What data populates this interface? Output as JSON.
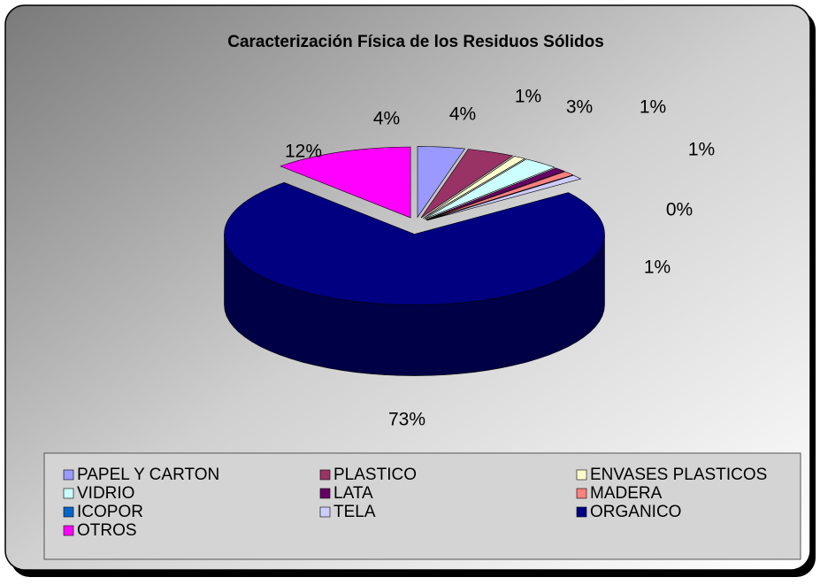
{
  "chart_data": {
    "type": "pie3d",
    "title": "Caracterización Física de los Residuos Sólidos",
    "categories": [
      "PAPEL Y CARTON",
      "PLASTICO",
      "ENVASES PLASTICOS",
      "VIDRIO",
      "LATA",
      "MADERA",
      "ICOPOR",
      "TELA",
      "ORGANICO",
      "OTROS"
    ],
    "values": [
      4,
      4,
      1,
      3,
      1,
      1,
      0,
      1,
      73,
      12
    ],
    "value_labels": [
      "4%",
      "4%",
      "1%",
      "3%",
      "1%",
      "1%",
      "0%",
      "1%",
      "73%",
      "12%"
    ],
    "colors": [
      "#9999ff",
      "#993366",
      "#ffffcc",
      "#ccffff",
      "#660066",
      "#ff8080",
      "#0066cc",
      "#ccccff",
      "#000080",
      "#ff00ff"
    ]
  }
}
